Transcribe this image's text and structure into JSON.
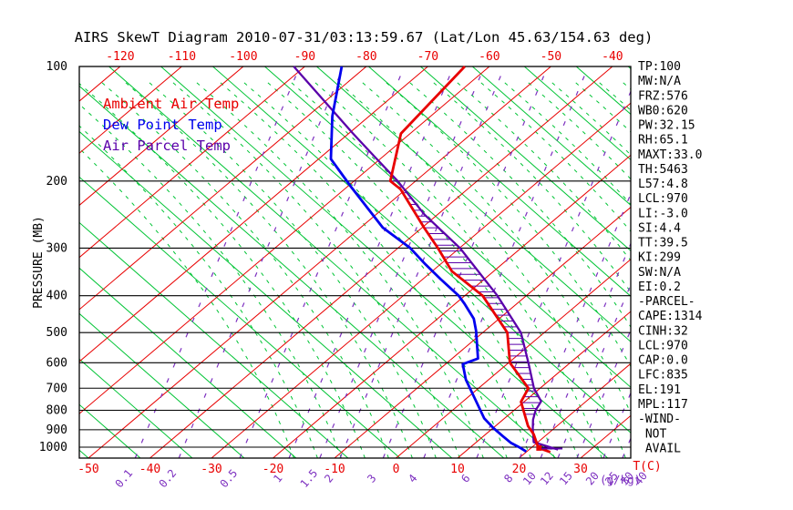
{
  "title": "AIRS SkewT Diagram 2010-07-31/03:13:59.67 (Lat/Lon 45.63/154.63 deg)",
  "legend": {
    "ambient": "Ambient Air Temp",
    "dew": "Dew Point Temp",
    "parcel": "Air Parcel Temp"
  },
  "axes": {
    "pressure_label": "PRESSURE (MB)",
    "pressure_ticks": [
      100,
      200,
      300,
      400,
      500,
      600,
      700,
      800,
      900,
      1000
    ],
    "top_temp_ticks": [
      -120,
      -110,
      -100,
      -90,
      -80,
      -70,
      -60,
      -50,
      -40
    ],
    "bottom_temp_ticks": [
      -50,
      -40,
      -30,
      -20,
      -10,
      0,
      10,
      20,
      30
    ],
    "temp_unit": "T(C)",
    "mix_unit": "(g/kg)"
  },
  "stats": [
    "TP:100",
    "MW:N/A",
    "FRZ:576",
    "WB0:620",
    "PW:32.15",
    "RH:65.1",
    "MAXT:33.0",
    "TH:5463",
    "L57:4.8",
    "LCL:970",
    "LI:-3.0",
    "SI:4.4",
    "TT:39.5",
    "KI:299",
    "SW:N/A",
    "EI:0.2",
    "-PARCEL-",
    "CAPE:1314",
    "CINH:32",
    "LCL:970",
    "CAP:0.0",
    "LFC:835",
    "EL:191",
    "MPL:117",
    "-WIND-",
    " NOT",
    " AVAIL"
  ],
  "colors": {
    "isotherm_red": "#e80000",
    "adiabat_green": "#00c435",
    "mixing_purple": "#7d30c0",
    "parcel_purple": "#5a00aa",
    "dew_blue": "#0000ee",
    "black": "#000000"
  },
  "chart_data": {
    "type": "line",
    "title": "AIRS SkewT Diagram 2010-07-31/03:13:59.67 (Lat/Lon 45.63/154.63 deg)",
    "xlabel": "T(C)",
    "ylabel": "PRESSURE (MB)",
    "pressure_range": [
      100,
      1050
    ],
    "temp_ticks_bottom": [
      -50,
      -40,
      -30,
      -20,
      -10,
      0,
      10,
      20,
      30
    ],
    "temp_ticks_top": [
      -120,
      -110,
      -100,
      -90,
      -80,
      -70,
      -60,
      -50,
      -40
    ],
    "grid": {
      "isotherm_range": [
        -160,
        40
      ],
      "isotherm_step": 10,
      "mixing_ratio": {
        "values": [
          0.1,
          0.2,
          0.5,
          1,
          1.5,
          2,
          3,
          4,
          6,
          8,
          10,
          12,
          15,
          20,
          25,
          30,
          40
        ],
        "bottom_temps": [
          -42.4,
          -35.3,
          -25.4,
          -17.4,
          -12.4,
          -9.1,
          -2.1,
          4.5,
          13.1,
          20.1,
          23.5,
          26.3,
          29.4,
          33.7,
          36.8,
          39.3,
          41.6
        ]
      }
    },
    "cape_hatch": {
      "top_pressure": 191,
      "bottom_pressure": 835
    },
    "series": [
      {
        "name": "Ambient Air Temp",
        "color": "#e80000",
        "points": [
          [
            100,
            -64
          ],
          [
            150,
            -61.5
          ],
          [
            200,
            -54.1
          ],
          [
            210,
            -50.9
          ],
          [
            265,
            -39.7
          ],
          [
            300,
            -33.5
          ],
          [
            345,
            -26.8
          ],
          [
            400,
            -17.1
          ],
          [
            500,
            -6.0
          ],
          [
            600,
            0.2
          ],
          [
            700,
            8.1
          ],
          [
            760,
            9.5
          ],
          [
            880,
            15.3
          ],
          [
            925,
            17.8
          ],
          [
            995,
            20.8
          ],
          [
            1010,
            21.8
          ],
          [
            1030,
            23.9
          ]
        ]
      },
      {
        "name": "Dew Point Temp",
        "color": "#0000ee",
        "points": [
          [
            100,
            -84
          ],
          [
            135,
            -76
          ],
          [
            175,
            -68
          ],
          [
            207,
            -59.4
          ],
          [
            265,
            -46.4
          ],
          [
            300,
            -38
          ],
          [
            331,
            -32.4
          ],
          [
            362,
            -27.1
          ],
          [
            400,
            -21
          ],
          [
            420,
            -18.5
          ],
          [
            460,
            -14.1
          ],
          [
            495,
            -11.4
          ],
          [
            585,
            -5.8
          ],
          [
            605,
            -7.2
          ],
          [
            665,
            -3.7
          ],
          [
            700,
            -1.4
          ],
          [
            840,
            6.7
          ],
          [
            890,
            10
          ],
          [
            935,
            13.1
          ],
          [
            975,
            15.8
          ],
          [
            1005,
            18.3
          ],
          [
            1027,
            19.9
          ]
        ]
      },
      {
        "name": "Air Parcel Temp",
        "color": "#5a00aa",
        "points": [
          [
            100,
            -91.8
          ],
          [
            150,
            -69.3
          ],
          [
            173,
            -61.2
          ],
          [
            200,
            -52.9
          ],
          [
            245,
            -42.1
          ],
          [
            300,
            -29.9
          ],
          [
            400,
            -14.7
          ],
          [
            500,
            -3.8
          ],
          [
            600,
            3.2
          ],
          [
            700,
            9.0
          ],
          [
            758,
            12.7
          ],
          [
            800,
            13.5
          ],
          [
            847,
            14.9
          ],
          [
            895,
            16.6
          ],
          [
            970,
            19.3
          ],
          [
            1015,
            24.7
          ]
        ]
      }
    ],
    "markers": {
      "surface_square": {
        "P": 1005,
        "T": 21.3
      },
      "surface_tick": {
        "P": 1008,
        "T1": 21.8,
        "T2": 25.2
      }
    }
  }
}
